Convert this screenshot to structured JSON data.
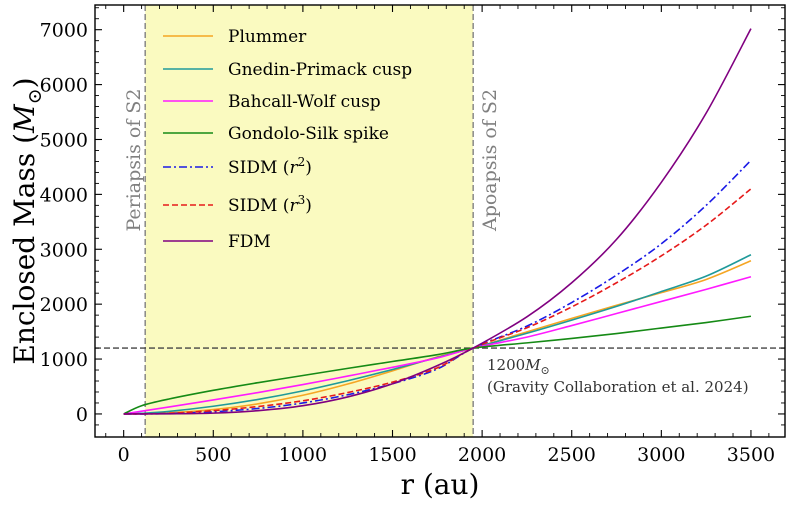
{
  "chart_data": {
    "type": "line",
    "title": "",
    "xlabel": "r (au)",
    "ylabel": "Enclosed Mass (M_⊙)",
    "ylabel_main": "Enclosed Mass (",
    "ylabel_M": "M",
    "ylabel_sub": "⊙",
    "ylabel_close": ")",
    "xlim": [
      -160,
      3690
    ],
    "ylim": [
      -420,
      7450
    ],
    "xticks": [
      0,
      500,
      1000,
      1500,
      2000,
      2500,
      3000,
      3500
    ],
    "yticks": [
      0,
      1000,
      2000,
      3000,
      4000,
      5000,
      6000,
      7000
    ],
    "shaded_region": {
      "x0": 120,
      "x1": 1950,
      "color": "#fafac0"
    },
    "vlines": [
      {
        "x": 120,
        "label": "Periapsis of S2",
        "color": "#808080",
        "dash": "dashed"
      },
      {
        "x": 1950,
        "label": "Apoapsis of S2",
        "color": "#808080",
        "dash": "dashed"
      }
    ],
    "hline": {
      "y": 1200,
      "color": "#444444",
      "dash": "dashed"
    },
    "annotation": {
      "mass_value": "1200",
      "mass_unit": "M",
      "mass_sub": "⊙",
      "citation": "(Gravity Collaboration et al. 2024)"
    },
    "x": [
      0,
      100,
      250,
      500,
      750,
      1000,
      1250,
      1500,
      1750,
      1950,
      2250,
      2500,
      2750,
      3000,
      3250,
      3500
    ],
    "series": [
      {
        "name": "Plummer",
        "color": "#f5a623",
        "dash": "solid",
        "values": [
          0,
          3,
          19,
          80,
          185,
          340,
          545,
          785,
          1040,
          1200,
          1495,
          1740,
          1980,
          2210,
          2450,
          2790
        ]
      },
      {
        "name": "Gnedin-Primack cusp",
        "color": "#1f9a9a",
        "dash": "solid",
        "values": [
          0,
          11,
          45,
          140,
          265,
          420,
          605,
          810,
          1030,
          1200,
          1470,
          1710,
          1960,
          2230,
          2510,
          2900
        ]
      },
      {
        "name": "Bahcall-Wolf cusp",
        "color": "#ff1aff",
        "dash": "solid",
        "values": [
          0,
          50,
          125,
          255,
          390,
          535,
          690,
          850,
          1020,
          1200,
          1400,
          1610,
          1830,
          2050,
          2270,
          2500
        ]
      },
      {
        "name": "Gondolo-Silk spike",
        "color": "#158a15",
        "dash": "solid",
        "values": [
          0,
          150,
          270,
          430,
          570,
          700,
          830,
          955,
          1080,
          1200,
          1295,
          1375,
          1465,
          1565,
          1665,
          1780
        ]
      },
      {
        "name": "SIDM (r^2)",
        "label_main": "SIDM (",
        "label_var": "r",
        "label_exp": "2",
        "label_close": ")",
        "color": "#1a1ae6",
        "dash": "dashdot",
        "values": [
          0,
          1,
          8,
          40,
          100,
          200,
          350,
          550,
          820,
          1200,
          1600,
          2030,
          2530,
          3100,
          3800,
          4620
        ]
      },
      {
        "name": "SIDM (r^3)",
        "label_main": "SIDM (",
        "label_var": "r",
        "label_exp": "3",
        "label_close": ")",
        "color": "#e61a1a",
        "dash": "dashed",
        "values": [
          0,
          2,
          12,
          60,
          135,
          240,
          390,
          580,
          840,
          1200,
          1570,
          1950,
          2390,
          2880,
          3440,
          4100
        ]
      },
      {
        "name": "FDM",
        "color": "#800080",
        "dash": "solid",
        "values": [
          0,
          0,
          2,
          15,
          60,
          150,
          310,
          550,
          880,
          1200,
          1770,
          2390,
          3180,
          4220,
          5480,
          7020
        ]
      }
    ]
  }
}
